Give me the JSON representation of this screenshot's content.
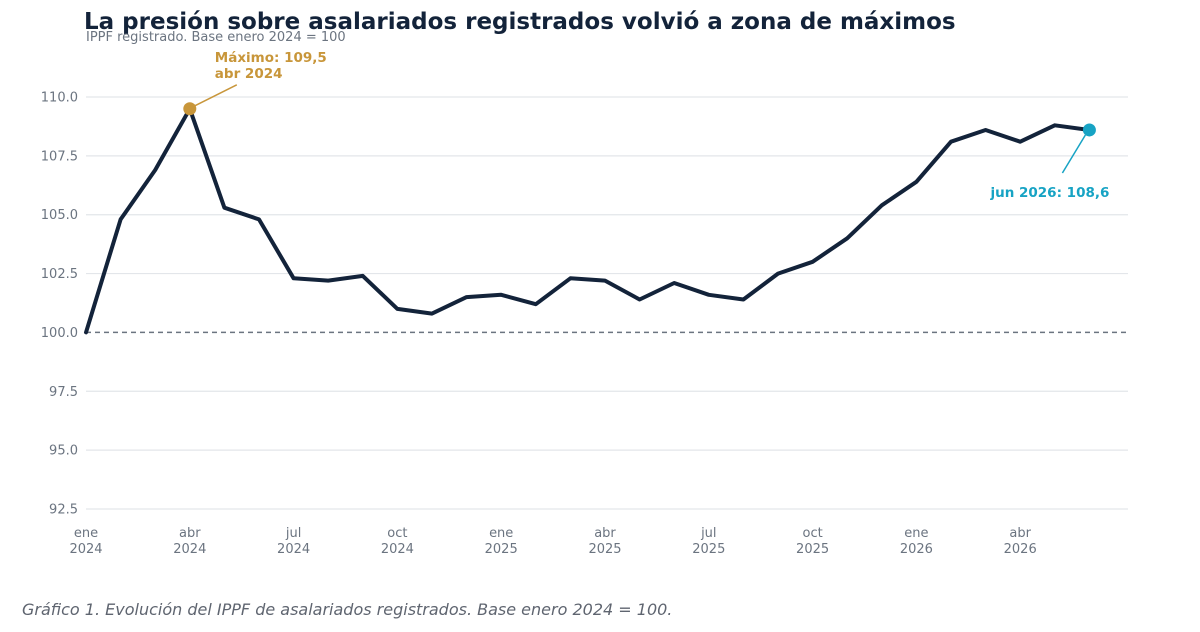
{
  "chart_data": {
    "type": "line",
    "title": "La presión sobre asalariados registrados volvió a zona de máximos",
    "subtitle": "IPPF registrado. Base enero 2024 = 100",
    "x": [
      "2024-01",
      "2024-02",
      "2024-03",
      "2024-04",
      "2024-05",
      "2024-06",
      "2024-07",
      "2024-08",
      "2024-09",
      "2024-10",
      "2024-11",
      "2024-12",
      "2025-01",
      "2025-02",
      "2025-03",
      "2025-04",
      "2025-05",
      "2025-06",
      "2025-07",
      "2025-08",
      "2025-09",
      "2025-10",
      "2025-11",
      "2025-12",
      "2026-01",
      "2026-02",
      "2026-03",
      "2026-04",
      "2026-05",
      "2026-06"
    ],
    "series": [
      {
        "values": [
          100.0,
          104.8,
          106.9,
          109.5,
          105.3,
          104.8,
          102.3,
          102.2,
          102.4,
          101.0,
          100.8,
          101.5,
          101.6,
          101.2,
          102.3,
          102.2,
          101.4,
          102.1,
          101.6,
          101.4,
          102.5,
          103.0,
          104.0,
          105.4,
          106.4,
          108.1,
          108.6,
          108.1,
          108.8,
          108.6
        ],
        "color": "#13233a"
      }
    ],
    "ylim": [
      92.5,
      110.0
    ],
    "yticks": [
      92.5,
      95.0,
      97.5,
      100.0,
      102.5,
      105.0,
      107.5,
      110.0
    ],
    "ytick_labels": [
      "92.5",
      "95.0",
      "97.5",
      "100.0",
      "102.5",
      "105.0",
      "107.5",
      "110.0"
    ],
    "xticks": [
      {
        "month": "ene",
        "year": "2024",
        "index": 0
      },
      {
        "month": "abr",
        "year": "2024",
        "index": 3
      },
      {
        "month": "jul",
        "year": "2024",
        "index": 6
      },
      {
        "month": "oct",
        "year": "2024",
        "index": 9
      },
      {
        "month": "ene",
        "year": "2025",
        "index": 12
      },
      {
        "month": "abr",
        "year": "2025",
        "index": 15
      },
      {
        "month": "jul",
        "year": "2025",
        "index": 18
      },
      {
        "month": "oct",
        "year": "2025",
        "index": 21
      },
      {
        "month": "ene",
        "year": "2026",
        "index": 24
      },
      {
        "month": "abr",
        "year": "2026",
        "index": 27
      }
    ],
    "reference_line": {
      "y": 100.0,
      "style": "dashed",
      "color": "#6b7480"
    },
    "grid": true,
    "annotations": [
      {
        "index": 3,
        "value": 109.5,
        "lines": [
          "Máximo: 109,5",
          "abr 2024"
        ],
        "color": "#c8963a",
        "placement": "above-right"
      },
      {
        "index": 29,
        "value": 108.6,
        "lines": [
          "jun 2026: 108,6"
        ],
        "color": "#17a3c4",
        "placement": "below-left"
      }
    ]
  },
  "caption": "Gráfico 1. Evolución del IPPF de asalariados registrados. Base enero 2024 = 100."
}
